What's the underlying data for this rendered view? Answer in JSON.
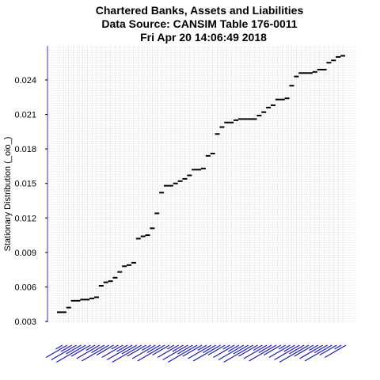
{
  "chart_data": {
    "type": "scatter",
    "title": "Chartered Banks, Assets and Liabilities",
    "subtitle": "Data Source: CANSIM Table 176-0011",
    "timestamp": "Fri Apr 20 14:06:49 2018",
    "xlabel": "",
    "ylabel": "Stationary Distribution (_oio_)",
    "ylim": [
      0.003,
      0.0265
    ],
    "yticks": [
      "0.003",
      "0.006",
      "0.009",
      "0.012",
      "0.015",
      "0.018",
      "0.021",
      "0.024"
    ],
    "grid": true,
    "legend": "none",
    "colors": {
      "axis": "#3333cc",
      "grid": "#c8c8c8",
      "marker": "#000000",
      "category_label": "#1a1aa6"
    },
    "values": [
      0.0038,
      0.0038,
      0.0042,
      0.0048,
      0.0048,
      0.0049,
      0.0049,
      0.005,
      0.0051,
      0.0061,
      0.0064,
      0.0065,
      0.0068,
      0.0073,
      0.0078,
      0.0079,
      0.0081,
      0.0102,
      0.0104,
      0.0105,
      0.0111,
      0.0124,
      0.0142,
      0.0148,
      0.0148,
      0.015,
      0.0152,
      0.0154,
      0.0157,
      0.0162,
      0.0162,
      0.0163,
      0.0174,
      0.0176,
      0.0193,
      0.0199,
      0.0203,
      0.0203,
      0.0205,
      0.0206,
      0.0206,
      0.0206,
      0.0206,
      0.0209,
      0.0212,
      0.0216,
      0.0218,
      0.0223,
      0.0223,
      0.0224,
      0.0235,
      0.0243,
      0.0246,
      0.0246,
      0.0246,
      0.0247,
      0.0249,
      0.0249,
      0.0255,
      0.0257,
      0.026,
      0.0261
    ]
  }
}
